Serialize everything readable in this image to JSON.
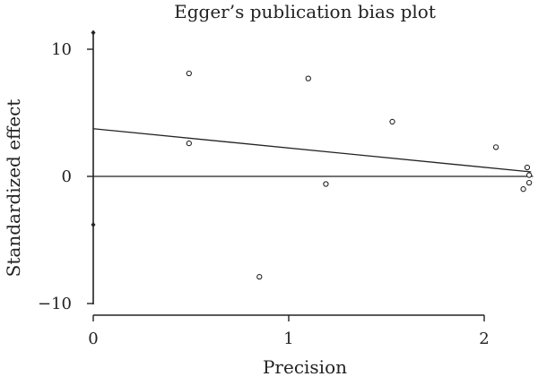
{
  "chart_data": {
    "type": "scatter",
    "title": "Egger’s publication bias plot",
    "xlabel": "Precision",
    "ylabel": "Standardized effect",
    "xlim": [
      0,
      2.25
    ],
    "ylim": [
      -10,
      11.5
    ],
    "xticks": [
      {
        "value": 0,
        "label": "0"
      },
      {
        "value": 1,
        "label": "1"
      },
      {
        "value": 2,
        "label": "2"
      }
    ],
    "yticks": [
      {
        "value": 10,
        "label": "10"
      },
      {
        "value": 0,
        "label": "0"
      },
      {
        "value": -10,
        "label": "−10"
      }
    ],
    "points": [
      {
        "x": 0.49,
        "y": 8.1
      },
      {
        "x": 0.49,
        "y": 2.6
      },
      {
        "x": 0.85,
        "y": -7.9
      },
      {
        "x": 1.1,
        "y": 7.7
      },
      {
        "x": 1.19,
        "y": -0.6
      },
      {
        "x": 1.53,
        "y": 4.3
      },
      {
        "x": 2.06,
        "y": 2.3
      },
      {
        "x": 2.2,
        "y": -1.0
      },
      {
        "x": 2.22,
        "y": 0.7
      },
      {
        "x": 2.23,
        "y": 0.1
      },
      {
        "x": 2.23,
        "y": -0.5
      }
    ],
    "regression_line": {
      "x": [
        0,
        2.24
      ],
      "y": [
        3.75,
        0.35
      ]
    },
    "zero_line": {
      "y": 0
    },
    "intercept_ci": {
      "x": 0,
      "y_low": -3.8,
      "y_high": 11.3
    },
    "grid": false,
    "legend": "none"
  }
}
